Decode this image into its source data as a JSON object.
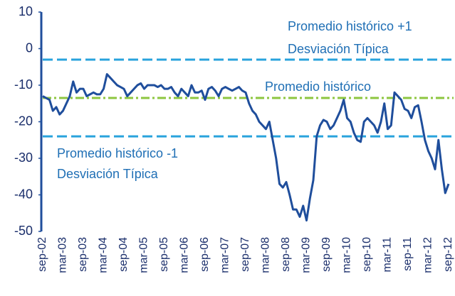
{
  "chart_data": {
    "type": "line",
    "categories": [
      "sep-02",
      null,
      null,
      null,
      null,
      null,
      "mar-03",
      null,
      null,
      null,
      null,
      null,
      "sep-03",
      null,
      null,
      null,
      null,
      null,
      "mar-04",
      null,
      null,
      null,
      null,
      null,
      "sep-04",
      null,
      null,
      null,
      null,
      null,
      "mar-05",
      null,
      null,
      null,
      null,
      null,
      "sep-05",
      null,
      null,
      null,
      null,
      null,
      "mar-06",
      null,
      null,
      null,
      null,
      null,
      "sep-06",
      null,
      null,
      null,
      null,
      null,
      "mar-07",
      null,
      null,
      null,
      null,
      null,
      "sep-07",
      null,
      null,
      null,
      null,
      null,
      "mar-08",
      null,
      null,
      null,
      null,
      null,
      "sep-08",
      null,
      null,
      null,
      null,
      null,
      "mar-09",
      null,
      null,
      null,
      null,
      null,
      "sep-09",
      null,
      null,
      null,
      null,
      null,
      "mar-10",
      null,
      null,
      null,
      null,
      null,
      "sep-10",
      null,
      null,
      null,
      null,
      null,
      "mar-11",
      null,
      null,
      null,
      null,
      null,
      "sep-11",
      null,
      null,
      null,
      null,
      null,
      "mar-12",
      null,
      null,
      null,
      null,
      null,
      "sep-12"
    ],
    "series": [
      {
        "color": "#1f4e9c",
        "values": [
          -13,
          -13.5,
          -14,
          -17,
          -16,
          -18,
          -17,
          -15,
          -13,
          -9,
          -12,
          -11,
          -11,
          -13,
          -12.5,
          -12,
          -12.5,
          -12.5,
          -11,
          -7,
          -8,
          -9,
          -10,
          -10.5,
          -11,
          -13,
          -12,
          -11,
          -10,
          -9.5,
          -11,
          -10,
          -10,
          -10,
          -10.5,
          -10,
          -11,
          -11,
          -10.5,
          -12,
          -13,
          -11,
          -12,
          -13,
          -10,
          -12,
          -12,
          -11.5,
          -14,
          -11,
          -10.5,
          -11.5,
          -13,
          -11,
          -10.5,
          -11,
          -11.5,
          -11,
          -10.5,
          -11.5,
          -12,
          -15,
          -17,
          -18,
          -20,
          -21,
          -22,
          -20,
          -25,
          -30,
          -37,
          -38,
          -36.5,
          -40,
          -44,
          -44,
          -46,
          -43,
          -47,
          -41,
          -36,
          -24,
          -21,
          -19.5,
          -20,
          -22,
          -21,
          -19,
          -17,
          -14,
          -19,
          -20,
          -23,
          -25,
          -25.5,
          -20,
          -19,
          -20,
          -21,
          -23,
          -20,
          -15,
          -22,
          -21,
          -12,
          -13,
          -14,
          -16.5,
          -17,
          -19,
          -16,
          -15.5,
          -20,
          -25,
          -28,
          -30,
          -33,
          -25,
          -33,
          -39.5,
          -37
        ]
      }
    ],
    "reference_lines": [
      {
        "value": -3,
        "color": "#29a3dc",
        "style": "dashed"
      },
      {
        "value": -13.5,
        "color": "#8dc63f",
        "style": "dashdot"
      },
      {
        "value": -24,
        "color": "#29a3dc",
        "style": "dashed"
      }
    ],
    "annotations": [
      [
        "Promedio histórico +1",
        "Desviación Típica"
      ],
      [
        "Promedio histórico"
      ],
      [
        "Promedio histórico -1",
        "Desviación Típica"
      ]
    ],
    "ylim": [
      -50,
      10
    ],
    "yticks": [
      -50,
      -40,
      -30,
      -20,
      -10,
      0,
      10
    ],
    "grid": false
  }
}
